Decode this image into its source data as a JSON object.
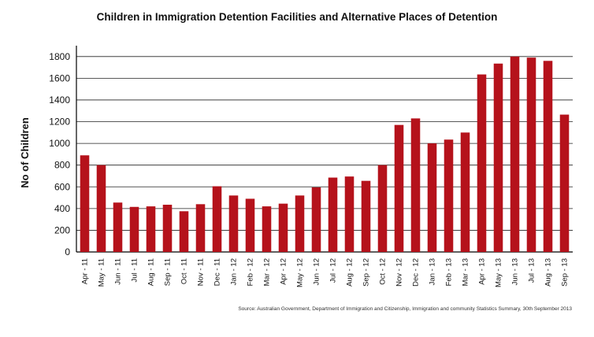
{
  "chart_data": {
    "type": "bar",
    "title": "Children in Immigration Detention Facilities and Alternative Places of Detention",
    "ylabel": "No of Children",
    "xlabel": "",
    "source": "Source: Australian Government, Department of Immigration and Citizenship, Immigration and community Statistics Summary, 30th September 2013",
    "ylim": [
      0,
      1900
    ],
    "yticks": [
      0,
      200,
      400,
      600,
      800,
      1000,
      1200,
      1400,
      1600,
      1800
    ],
    "grid": true,
    "bar_color": "#b5121b",
    "categories": [
      "Apr - 11",
      "May - 11",
      "Jun - 11",
      "Jul - 11",
      "Aug - 11",
      "Sep - 11",
      "Oct - 11",
      "Nov - 11",
      "Dec - 11",
      "Jan - 12",
      "Feb - 12",
      "Mar - 12",
      "Apr - 12",
      "May - 12",
      "Jun - 12",
      "Jul - 12",
      "Aug - 12",
      "Sep - 12",
      "Oct - 12",
      "Nov - 12",
      "Dec - 12",
      "Jan - 13",
      "Feb - 13",
      "Mar - 13",
      "Apr - 13",
      "May - 13",
      "Jun - 13",
      "Jul - 13",
      "Aug - 13",
      "Sep - 13"
    ],
    "values": [
      890,
      800,
      455,
      415,
      420,
      435,
      375,
      440,
      605,
      520,
      490,
      420,
      445,
      520,
      595,
      685,
      695,
      655,
      800,
      1170,
      1230,
      1000,
      1035,
      1100,
      1635,
      1735,
      1800,
      1790,
      1760,
      1265
    ]
  }
}
